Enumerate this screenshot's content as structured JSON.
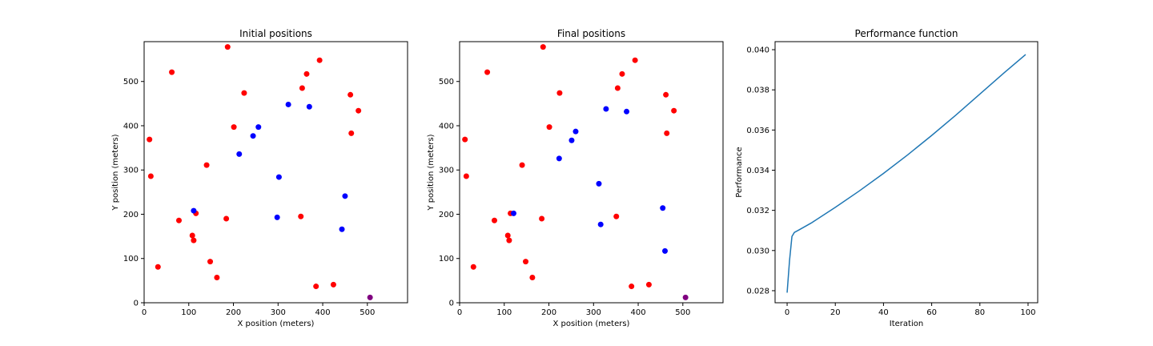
{
  "chart_data": [
    {
      "type": "scatter",
      "title": "Initial positions",
      "xlabel": "X position (meters)",
      "ylabel": "Y position (meters)",
      "xlim": [
        0,
        590
      ],
      "ylim": [
        0,
        590
      ],
      "xticks": [
        0,
        100,
        200,
        300,
        400,
        500
      ],
      "yticks": [
        0,
        100,
        200,
        300,
        400,
        500
      ],
      "grid": false,
      "colors": {
        "red": "#ff0000",
        "blue": "#0000ff",
        "purple": "#800080"
      },
      "series": [
        {
          "color": "red",
          "points": [
            [
              187,
              578
            ],
            [
              62,
              521
            ],
            [
              393,
              548
            ],
            [
              364,
              517
            ],
            [
              224,
              474
            ],
            [
              354,
              485
            ],
            [
              462,
              470
            ],
            [
              480,
              434
            ],
            [
              201,
              397
            ],
            [
              464,
              383
            ],
            [
              12,
              369
            ],
            [
              15,
              286
            ],
            [
              140,
              311
            ],
            [
              116,
              202
            ],
            [
              78,
              186
            ],
            [
              184,
              190
            ],
            [
              351,
              195
            ],
            [
              108,
              152
            ],
            [
              111,
              141
            ],
            [
              148,
              93
            ],
            [
              31,
              81
            ],
            [
              163,
              57
            ],
            [
              385,
              37
            ],
            [
              424,
              41
            ]
          ]
        },
        {
          "color": "blue",
          "points": [
            [
              323,
              448
            ],
            [
              370,
              443
            ],
            [
              256,
              397
            ],
            [
              244,
              377
            ],
            [
              213,
              336
            ],
            [
              302,
              284
            ],
            [
              450,
              241
            ],
            [
              298,
              193
            ],
            [
              111,
              208
            ],
            [
              443,
              166
            ]
          ]
        },
        {
          "color": "purple",
          "points": [
            [
              506,
              12
            ]
          ]
        }
      ]
    },
    {
      "type": "scatter",
      "title": "Final positions",
      "xlabel": "X position (meters)",
      "ylabel": "Y position (meters)",
      "xlim": [
        0,
        590
      ],
      "ylim": [
        0,
        590
      ],
      "xticks": [
        0,
        100,
        200,
        300,
        400,
        500
      ],
      "yticks": [
        0,
        100,
        200,
        300,
        400,
        500
      ],
      "grid": false,
      "colors": {
        "red": "#ff0000",
        "blue": "#0000ff",
        "purple": "#800080"
      },
      "series": [
        {
          "color": "red",
          "points": [
            [
              187,
              578
            ],
            [
              62,
              521
            ],
            [
              393,
              548
            ],
            [
              364,
              517
            ],
            [
              224,
              474
            ],
            [
              354,
              485
            ],
            [
              462,
              470
            ],
            [
              480,
              434
            ],
            [
              201,
              397
            ],
            [
              464,
              383
            ],
            [
              12,
              369
            ],
            [
              15,
              286
            ],
            [
              140,
              311
            ],
            [
              114,
              202
            ],
            [
              78,
              186
            ],
            [
              184,
              190
            ],
            [
              351,
              195
            ],
            [
              108,
              152
            ],
            [
              111,
              141
            ],
            [
              148,
              93
            ],
            [
              31,
              81
            ],
            [
              163,
              57
            ],
            [
              385,
              37
            ],
            [
              424,
              41
            ]
          ]
        },
        {
          "color": "blue",
          "points": [
            [
              328,
              438
            ],
            [
              374,
              432
            ],
            [
              260,
              387
            ],
            [
              251,
              367
            ],
            [
              223,
              326
            ],
            [
              312,
              269
            ],
            [
              455,
              214
            ],
            [
              316,
              177
            ],
            [
              121,
              202
            ],
            [
              460,
              117
            ]
          ]
        },
        {
          "color": "purple",
          "points": [
            [
              506,
              12
            ]
          ]
        }
      ]
    },
    {
      "type": "line",
      "title": "Performance function",
      "xlabel": "Iteration",
      "ylabel": "Performance",
      "xlim": [
        -5,
        104
      ],
      "ylim": [
        0.0274,
        0.0404
      ],
      "xticks": [
        0,
        20,
        40,
        60,
        80,
        100
      ],
      "yticks": [
        0.028,
        0.03,
        0.032,
        0.034,
        0.036,
        0.038,
        0.04
      ],
      "ytick_labels": [
        "0.028",
        "0.030",
        "0.032",
        "0.034",
        "0.036",
        "0.038",
        "0.040"
      ],
      "grid": false,
      "color": "#1f77b4",
      "series": [
        {
          "x": [
            0,
            1,
            2,
            3,
            5,
            10,
            20,
            30,
            40,
            50,
            60,
            70,
            80,
            90,
            99
          ],
          "values": [
            0.0279,
            0.0295,
            0.0307,
            0.0309,
            0.03103,
            0.03137,
            0.03215,
            0.03297,
            0.03384,
            0.03476,
            0.03573,
            0.03674,
            0.03779,
            0.03884,
            0.03976
          ]
        }
      ]
    }
  ]
}
